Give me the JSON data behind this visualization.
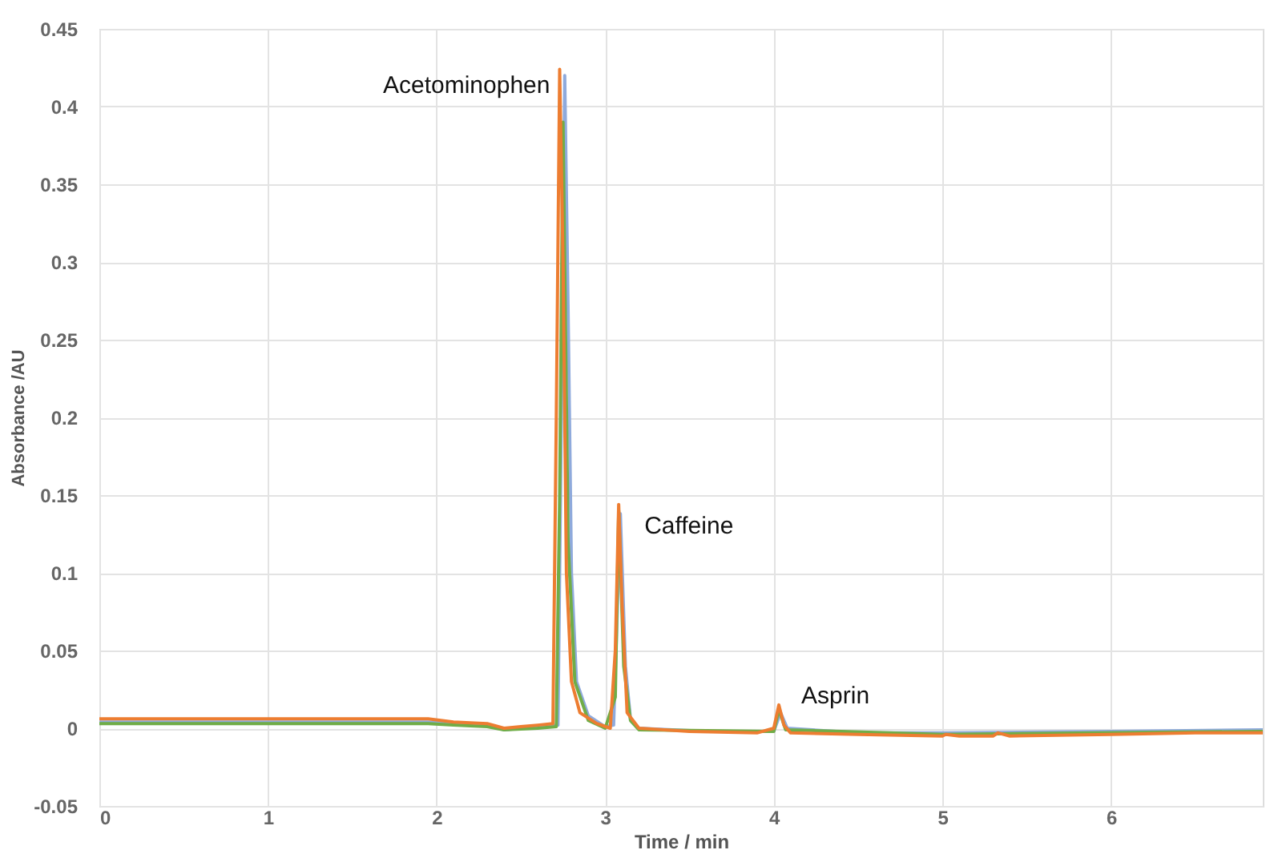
{
  "chart_data": {
    "type": "line",
    "xlabel": "Time / min",
    "ylabel": "Absorbance /AU",
    "xlim": [
      0,
      6.9
    ],
    "xticks": [
      0,
      1,
      2,
      3,
      4,
      5,
      6
    ],
    "ylim": [
      -0.05,
      0.45
    ],
    "yticks": [
      -0.05,
      0,
      0.05,
      0.1,
      0.15,
      0.2,
      0.25,
      0.3,
      0.35,
      0.4,
      0.45
    ],
    "grid": true,
    "marker": "none",
    "line_style": "solid",
    "series": [
      {
        "color": "#8faadc",
        "x": [
          0,
          1,
          1.95,
          2.1,
          2.3,
          2.4,
          2.6,
          2.72,
          2.74,
          2.76,
          2.78,
          2.8,
          2.83,
          2.9,
          3.0,
          3.05,
          3.09,
          3.12,
          3.15,
          3.2,
          3.6,
          4.0,
          4.04,
          4.08,
          4.5,
          5.0,
          6.0,
          6.9
        ],
        "values": [
          0.004,
          0.004,
          0.004,
          0.003,
          0.002,
          -0.001,
          0.001,
          0.002,
          0.2,
          0.42,
          0.27,
          0.1,
          0.03,
          0.008,
          0.001,
          0.002,
          0.138,
          0.04,
          0.006,
          0.0,
          -0.002,
          -0.002,
          0.01,
          0.0,
          -0.003,
          -0.003,
          -0.002,
          -0.001
        ]
      },
      {
        "color": "#70ad47",
        "x": [
          0,
          1,
          1.95,
          2.1,
          2.3,
          2.4,
          2.6,
          2.71,
          2.73,
          2.75,
          2.78,
          2.82,
          2.9,
          3.0,
          3.06,
          3.08,
          3.11,
          3.15,
          3.2,
          4.0,
          4.03,
          4.07,
          5.0,
          6.9
        ],
        "values": [
          0.003,
          0.003,
          0.003,
          0.002,
          0.001,
          -0.001,
          0.0,
          0.001,
          0.15,
          0.39,
          0.12,
          0.03,
          0.005,
          0.0,
          0.02,
          0.14,
          0.04,
          0.005,
          -0.001,
          -0.002,
          0.012,
          -0.001,
          -0.004,
          -0.002
        ]
      },
      {
        "color": "#ed7d31",
        "x": [
          0,
          0.5,
          1,
          1.5,
          1.95,
          2.1,
          2.3,
          2.4,
          2.5,
          2.6,
          2.69,
          2.71,
          2.73,
          2.75,
          2.77,
          2.8,
          2.85,
          2.95,
          3.03,
          3.06,
          3.08,
          3.1,
          3.13,
          3.2,
          3.5,
          3.9,
          4.0,
          4.03,
          4.06,
          4.1,
          4.5,
          5.0,
          5.02,
          5.1,
          5.3,
          5.33,
          5.4,
          6.0,
          6.5,
          6.9
        ],
        "values": [
          0.006,
          0.006,
          0.006,
          0.006,
          0.006,
          0.004,
          0.003,
          0.0,
          0.001,
          0.002,
          0.003,
          0.2,
          0.424,
          0.3,
          0.1,
          0.03,
          0.01,
          0.003,
          0.0,
          0.05,
          0.144,
          0.08,
          0.01,
          0.0,
          -0.002,
          -0.003,
          0.0,
          0.015,
          0.002,
          -0.003,
          -0.004,
          -0.005,
          -0.004,
          -0.005,
          -0.005,
          -0.003,
          -0.005,
          -0.004,
          -0.003,
          -0.003
        ]
      }
    ],
    "annotations": [
      {
        "text": "Acetominophen",
        "x": 2.73,
        "y": 0.424
      },
      {
        "text": "Caffeine",
        "x": 3.08,
        "y": 0.144
      },
      {
        "text": "Asprin",
        "x": 4.03,
        "y": 0.015
      }
    ]
  }
}
